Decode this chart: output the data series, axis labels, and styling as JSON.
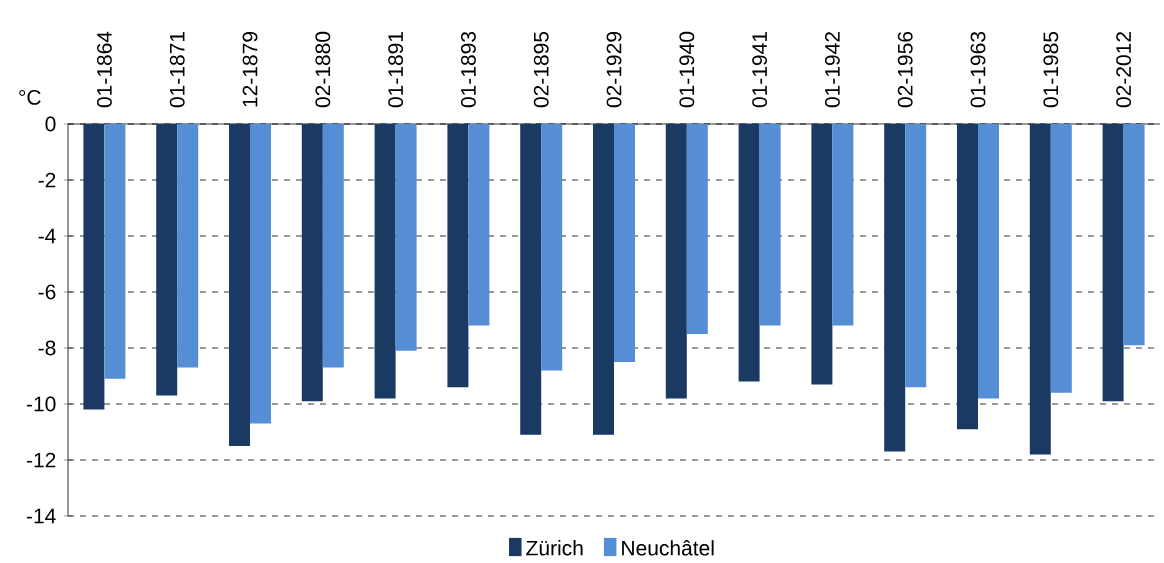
{
  "chart_data": {
    "type": "bar",
    "ylabel": "°C",
    "categories": [
      "01-1864",
      "01-1871",
      "12-1879",
      "02-1880",
      "01-1891",
      "01-1893",
      "02-1895",
      "02-1929",
      "01-1940",
      "01-1941",
      "01-1942",
      "02-1956",
      "01-1963",
      "01-1985",
      "02-2012"
    ],
    "series": [
      {
        "name": "Zürich",
        "color": "#1a3a63",
        "values": [
          -10.2,
          -9.7,
          -11.5,
          -9.9,
          -9.8,
          -9.4,
          -11.1,
          -11.1,
          -9.8,
          -9.2,
          -9.3,
          -11.7,
          -10.9,
          -11.8,
          -9.9
        ]
      },
      {
        "name": "Neuchâtel",
        "color": "#558ed5",
        "values": [
          -9.1,
          -8.7,
          -10.7,
          -8.7,
          -8.1,
          -7.2,
          -8.8,
          -8.5,
          -7.5,
          -7.2,
          -7.2,
          -9.4,
          -9.8,
          -9.6,
          -7.9
        ]
      }
    ],
    "ylim": [
      -14,
      0
    ],
    "yticks": [
      -14,
      -12,
      -10,
      -8,
      -6,
      -4,
      -2,
      0
    ],
    "grid": "y",
    "legend": "bottom"
  }
}
